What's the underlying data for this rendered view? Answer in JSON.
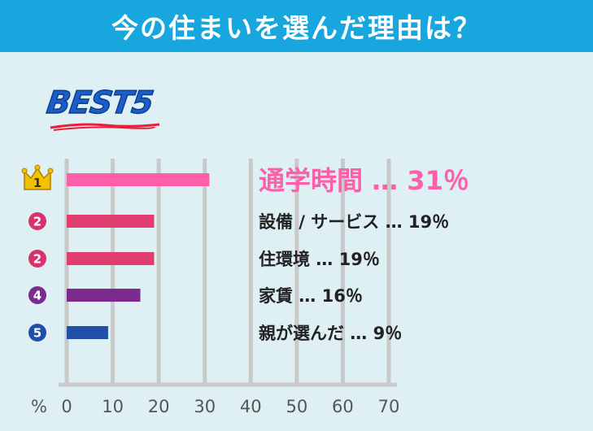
{
  "header": {
    "title": "今の住まいを選んだ理由は？"
  },
  "badge": {
    "text": "BEST5"
  },
  "colors": {
    "header_bg": "#18a6de",
    "background": "#dff0f5",
    "grid": "#c9c9c9",
    "label_text": "#222222",
    "highlight_text": "#ff5ea8"
  },
  "chart_data": {
    "type": "bar",
    "orientation": "horizontal",
    "title": "今の住まいを選んだ理由は？",
    "categories": [
      "通学時間",
      "設備 / サービス",
      "住環境",
      "家賃",
      "親が選んだ"
    ],
    "values": [
      31,
      19,
      19,
      16,
      9
    ],
    "ranks": [
      "1",
      "2",
      "2",
      "4",
      "5"
    ],
    "value_labels": [
      "31％",
      "19％",
      "19％",
      "16％",
      "9％"
    ],
    "separator": "…",
    "bar_colors": [
      "#ff5ea8",
      "#e23d71",
      "#e23d71",
      "#7b2b8e",
      "#1f4fa8"
    ],
    "rank_icon_colors": [
      "#f2c200",
      "#d6336c",
      "#d6336c",
      "#7b2b8e",
      "#1f4fa8"
    ],
    "xlim": [
      0,
      70
    ],
    "x_ticks": [
      "0",
      "10",
      "20",
      "30",
      "40",
      "50",
      "60",
      "70"
    ],
    "x_unit": "%",
    "grid": true,
    "legend": "none"
  }
}
